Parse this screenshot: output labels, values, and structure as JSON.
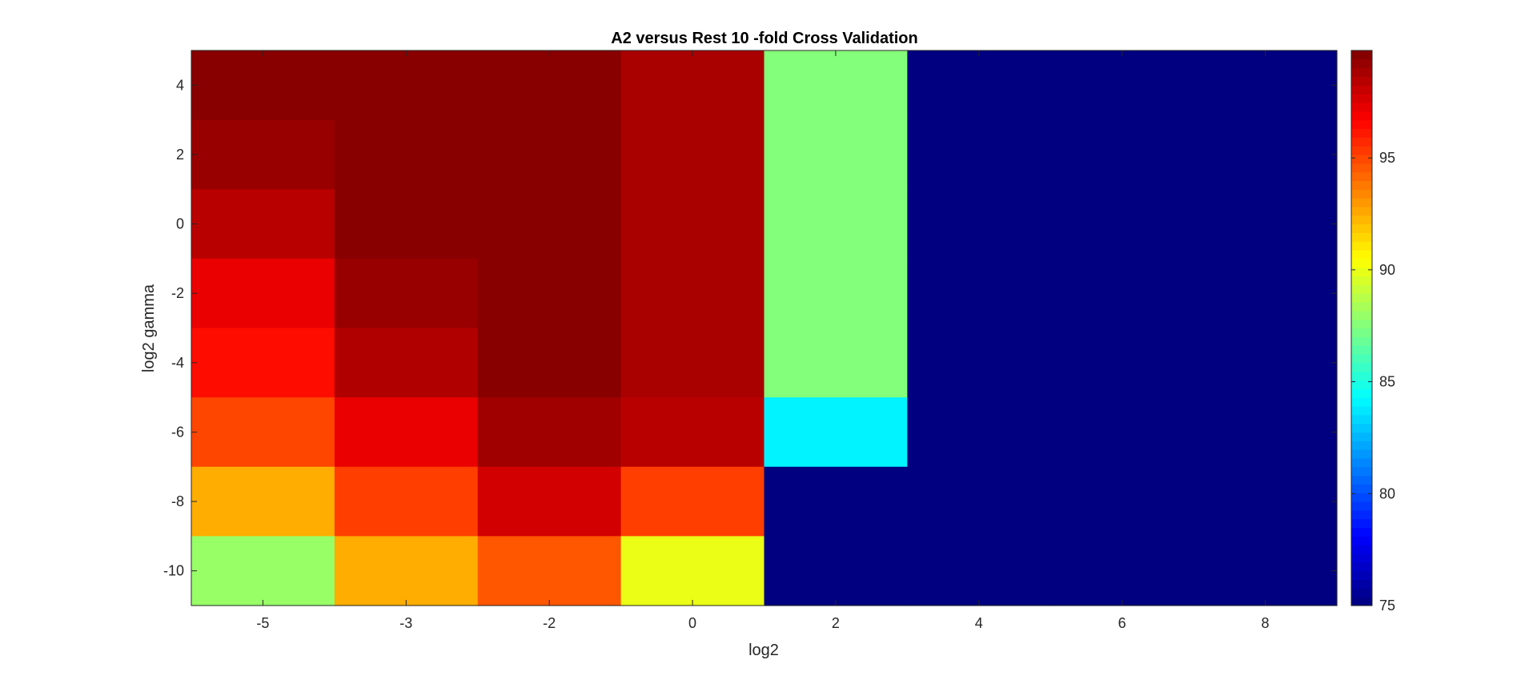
{
  "chart_data": {
    "type": "heatmap",
    "title": "A2 versus Rest 10 -fold Cross Validation",
    "xlabel": "log2",
    "ylabel": "log2 gamma",
    "x_ticks": [
      "-5",
      "-3",
      "-2",
      "0",
      "2",
      "4",
      "6",
      "8"
    ],
    "y_ticks": [
      "4",
      "2",
      "0",
      "-2",
      "-4",
      "-6",
      "-8",
      "-10"
    ],
    "colormap": "jet",
    "clim": [
      75,
      99.8
    ],
    "colorbar_ticks": [
      "75",
      "80",
      "85",
      "90",
      "95"
    ],
    "values": [
      [
        99.6,
        99.6,
        99.6,
        98.8,
        87.5,
        75,
        75,
        75
      ],
      [
        99.2,
        99.6,
        99.6,
        98.8,
        87.5,
        75,
        75,
        75
      ],
      [
        98.4,
        99.6,
        99.6,
        98.8,
        87.5,
        75,
        75,
        75
      ],
      [
        97.2,
        99.2,
        99.6,
        98.8,
        87.5,
        75,
        75,
        75
      ],
      [
        96.4,
        98.6,
        99.6,
        98.8,
        87.5,
        75,
        75,
        75
      ],
      [
        95.0,
        97.2,
        99.0,
        98.4,
        84.0,
        75,
        75,
        75
      ],
      [
        92.5,
        95.2,
        97.8,
        95.2,
        75,
        75,
        75,
        75
      ],
      [
        88.0,
        92.5,
        94.6,
        90.0,
        75,
        75,
        75,
        75
      ]
    ]
  }
}
